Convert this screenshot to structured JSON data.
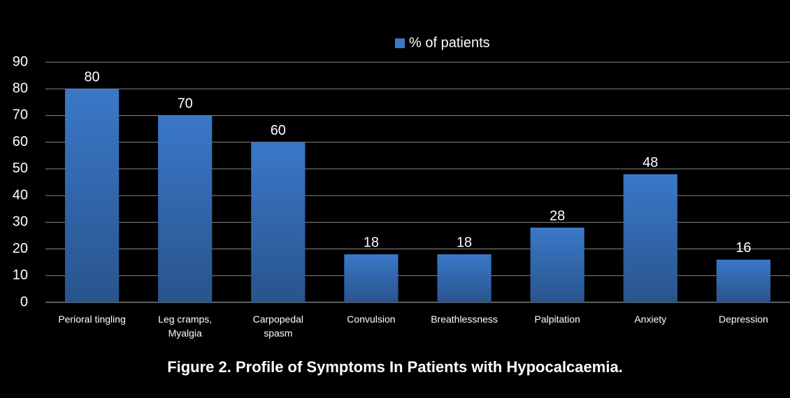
{
  "chart_data": {
    "type": "bar",
    "title": "Figure 2. Profile of Symptoms In Patients with Hypocalcaemia.",
    "categories": [
      "Perioral tingling",
      "Leg cramps,\nMyalgia",
      "Carpopedal\nspasm",
      "Convulsion",
      "Breathlessness",
      "Palpitation",
      "Anxiety",
      "Depression"
    ],
    "series": [
      {
        "name": "% of patients",
        "color": "#3a78c8",
        "values": [
          80,
          70,
          60,
          18,
          18,
          28,
          48,
          16
        ]
      }
    ],
    "ylim": [
      0,
      90
    ],
    "yticks": [
      0,
      10,
      20,
      30,
      40,
      50,
      60,
      70,
      80,
      90
    ],
    "grid": true,
    "legend": "top"
  }
}
